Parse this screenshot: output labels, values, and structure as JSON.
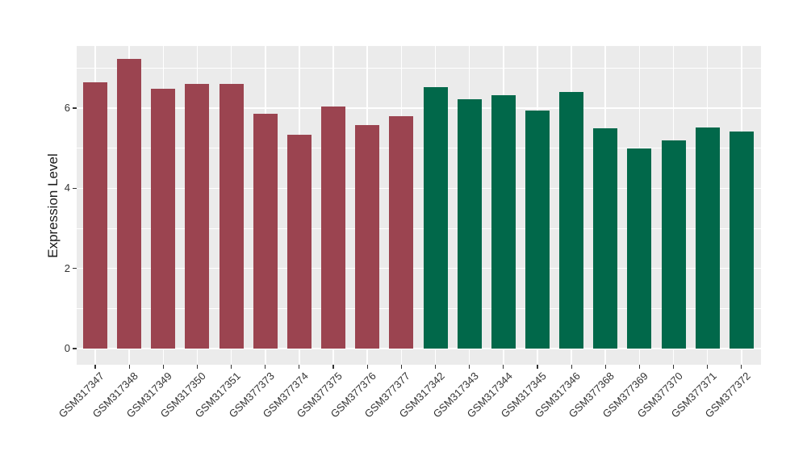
{
  "colors": {
    "panel_background": "#EBEBEB",
    "gridline": "#FFFFFF",
    "maroon": "#9B4450",
    "green": "#01684A",
    "tick_text": "#333333",
    "axis_title_text": "#1A1A1A",
    "figure_background": "#FFFFFF"
  },
  "chart_data": {
    "type": "bar",
    "title": "",
    "xlabel": "",
    "ylabel": "Expression Level",
    "ylim": [
      0,
      7.5
    ],
    "yticks_major": [
      0,
      2,
      4,
      6
    ],
    "yticks_minor": [
      1,
      3,
      5,
      7
    ],
    "grid": "white major and minor horizontal gridlines plus vertical gridlines at bar centers on gray panel",
    "legend": "none",
    "x_tick_angle_degrees": 45,
    "bars": [
      {
        "label": "GSM317347",
        "value": 6.65,
        "group": "maroon"
      },
      {
        "label": "GSM317348",
        "value": 7.22,
        "group": "maroon"
      },
      {
        "label": "GSM317349",
        "value": 6.48,
        "group": "maroon"
      },
      {
        "label": "GSM317350",
        "value": 6.6,
        "group": "maroon"
      },
      {
        "label": "GSM317351",
        "value": 6.6,
        "group": "maroon"
      },
      {
        "label": "GSM377373",
        "value": 5.85,
        "group": "maroon"
      },
      {
        "label": "GSM377374",
        "value": 5.33,
        "group": "maroon"
      },
      {
        "label": "GSM377375",
        "value": 6.04,
        "group": "maroon"
      },
      {
        "label": "GSM377376",
        "value": 5.58,
        "group": "maroon"
      },
      {
        "label": "GSM377377",
        "value": 5.79,
        "group": "maroon"
      },
      {
        "label": "GSM317342",
        "value": 6.52,
        "group": "green"
      },
      {
        "label": "GSM317343",
        "value": 6.23,
        "group": "green"
      },
      {
        "label": "GSM317344",
        "value": 6.33,
        "group": "green"
      },
      {
        "label": "GSM317345",
        "value": 5.93,
        "group": "green"
      },
      {
        "label": "GSM317346",
        "value": 6.4,
        "group": "green"
      },
      {
        "label": "GSM377368",
        "value": 5.49,
        "group": "green"
      },
      {
        "label": "GSM377369",
        "value": 4.99,
        "group": "green"
      },
      {
        "label": "GSM377370",
        "value": 5.19,
        "group": "green"
      },
      {
        "label": "GSM377371",
        "value": 5.52,
        "group": "green"
      },
      {
        "label": "GSM377372",
        "value": 5.42,
        "group": "green"
      }
    ]
  }
}
